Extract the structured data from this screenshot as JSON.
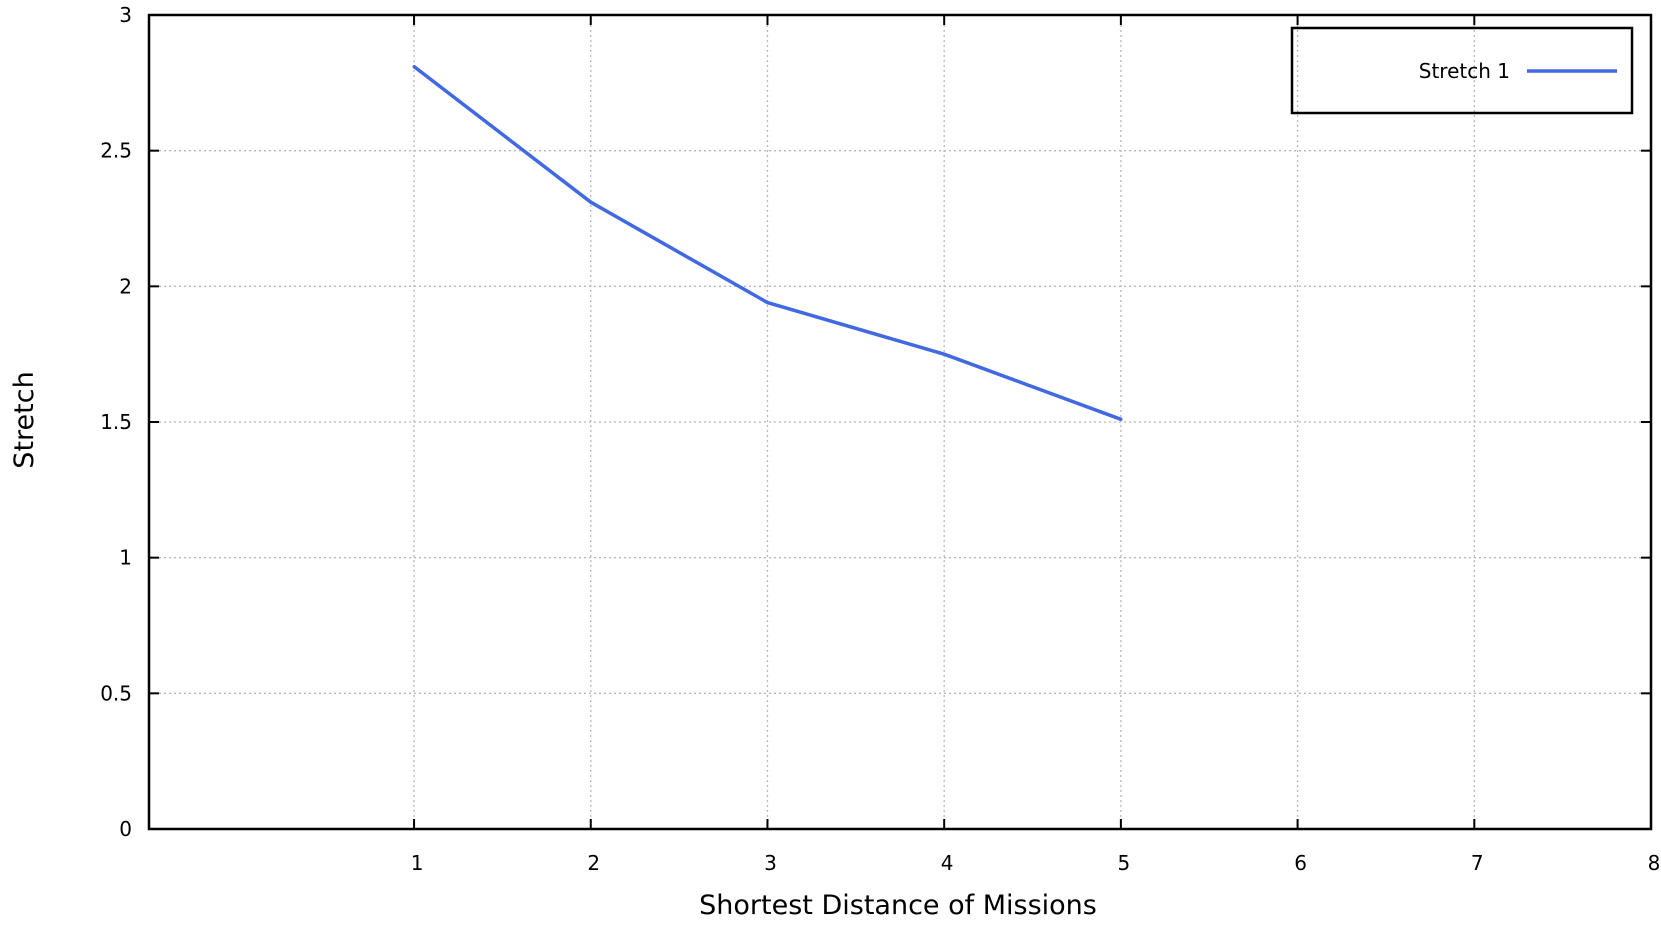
{
  "chart_data": {
    "type": "line",
    "title": "",
    "xlabel": "Shortest Distance of Missions",
    "ylabel": "Stretch",
    "xlim": [
      -0.5,
      8
    ],
    "ylim": [
      0,
      3
    ],
    "xticks": [
      1,
      2,
      3,
      4,
      5,
      6,
      7,
      8
    ],
    "xtick_labels": [
      "1",
      "2",
      "3",
      "4",
      "5",
      "6",
      "7",
      "8"
    ],
    "yticks": [
      0,
      0.5,
      1,
      1.5,
      2,
      2.5,
      3
    ],
    "ytick_labels": [
      "0",
      "0.5",
      "1",
      "1.5",
      "2",
      "2.5",
      "3"
    ],
    "grid": true,
    "legend_position": "top-right",
    "series": [
      {
        "name": "Stretch 1",
        "color": "#4169e1",
        "x": [
          1,
          2,
          3,
          4,
          5
        ],
        "y": [
          2.81,
          2.31,
          1.94,
          1.75,
          1.51
        ]
      }
    ]
  }
}
